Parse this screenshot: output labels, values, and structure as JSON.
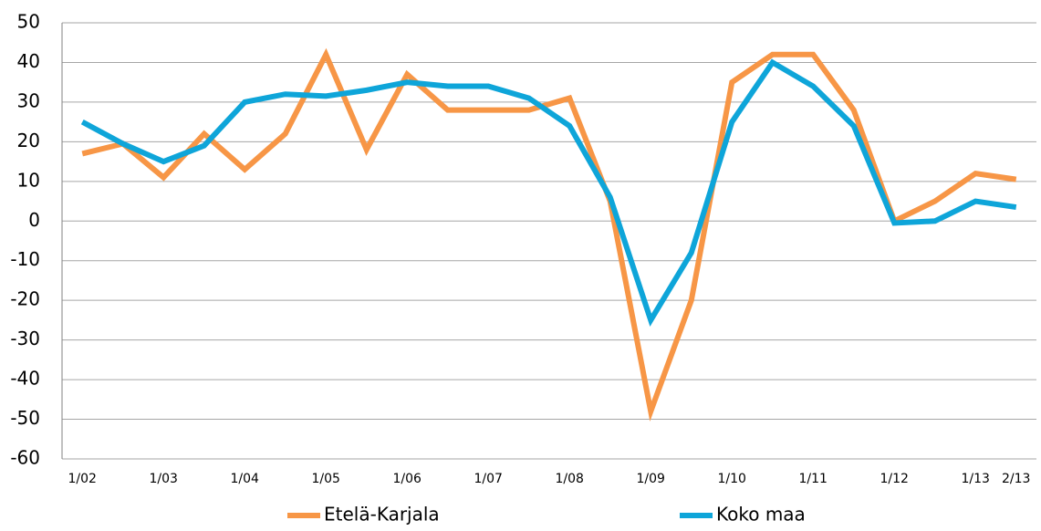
{
  "chart_data": {
    "type": "line",
    "categories": [
      "1/02",
      null,
      "1/03",
      null,
      "1/04",
      null,
      "1/05",
      null,
      "1/06",
      null,
      "1/07",
      null,
      "1/08",
      null,
      "1/09",
      null,
      "1/10",
      null,
      "1/11",
      null,
      "1/12",
      null,
      "1/13",
      "2/13"
    ],
    "series": [
      {
        "name": "Etelä-Karjala",
        "color": "#f79646",
        "values": [
          17,
          19.5,
          11,
          22,
          13,
          22,
          42,
          18,
          37,
          28,
          28,
          28,
          31,
          5,
          -48,
          -20,
          35,
          42,
          42,
          28,
          0,
          5,
          12,
          10.5
        ]
      },
      {
        "name": "Koko maa",
        "color": "#0ea5d9",
        "values": [
          25,
          19.5,
          15,
          19,
          30,
          32,
          31.5,
          33,
          35,
          34,
          34,
          31,
          24,
          6,
          -25,
          -8,
          25,
          40,
          34,
          24,
          -0.5,
          0,
          5,
          3.5
        ]
      }
    ],
    "ylim": [
      -60,
      50
    ],
    "yticks": [
      -60,
      -50,
      -40,
      -30,
      -20,
      -10,
      0,
      10,
      20,
      30,
      40,
      50
    ],
    "grid": true
  }
}
